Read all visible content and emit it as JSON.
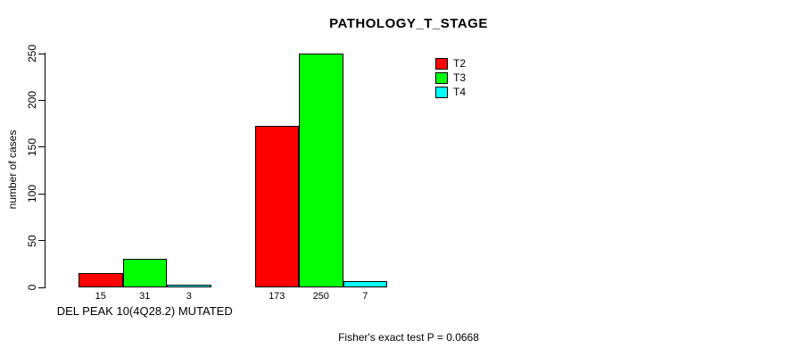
{
  "chart_data": {
    "type": "bar",
    "title": "PATHOLOGY_T_STAGE",
    "ylabel": "number of cases",
    "xlabel": "",
    "ylim": [
      0,
      250
    ],
    "yticks": [
      0,
      50,
      100,
      150,
      200,
      250
    ],
    "grid": false,
    "bar_value_labels_shown": true,
    "categories": [
      "DEL PEAK 10(4Q28.2) MUTATED",
      ""
    ],
    "series": [
      {
        "name": "T2",
        "color": "#ff0000",
        "values": [
          15,
          173
        ]
      },
      {
        "name": "T3",
        "color": "#00ff00",
        "values": [
          31,
          250
        ]
      },
      {
        "name": "T4",
        "color": "#00ffff",
        "values": [
          3,
          7
        ]
      }
    ],
    "legend": {
      "position": "top-right",
      "entries": [
        {
          "label": "T2",
          "color": "#ff0000"
        },
        {
          "label": "T3",
          "color": "#00ff00"
        },
        {
          "label": "T4",
          "color": "#00ffff"
        }
      ]
    },
    "footnote": "Fisher's exact test P = 0.0668"
  }
}
